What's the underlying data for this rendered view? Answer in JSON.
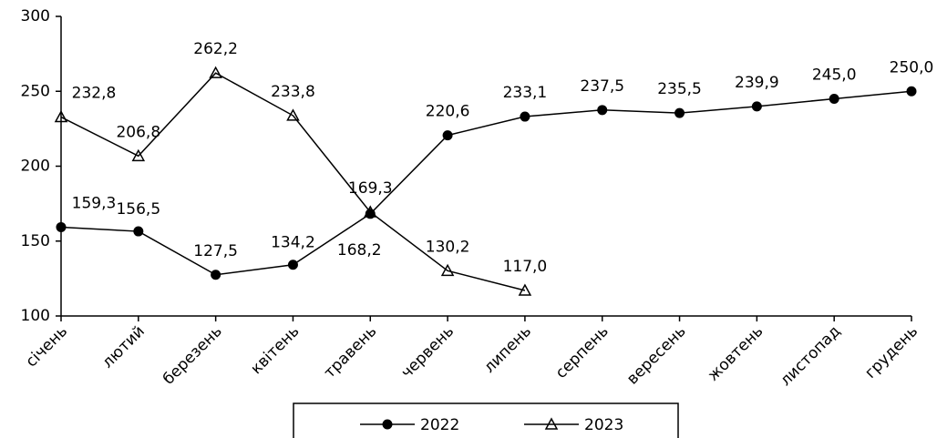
{
  "chart_data": {
    "type": "line",
    "categories": [
      "січень",
      "лютий",
      "березень",
      "квітень",
      "травень",
      "червень",
      "липень",
      "серпень",
      "вересень",
      "жовтень",
      "листопад",
      "грудень"
    ],
    "series": [
      {
        "name": "2022",
        "color": "#000000",
        "marker": "circle",
        "values": [
          159.3,
          156.5,
          127.5,
          134.2,
          168.2,
          220.6,
          233.1,
          237.5,
          235.5,
          239.9,
          245.0,
          250.0
        ],
        "value_labels": [
          "159,3",
          "156,5",
          "127,5",
          "134,2",
          "168,2",
          "220,6",
          "233,1",
          "237,5",
          "235,5",
          "239,9",
          "245,0",
          "250,0"
        ]
      },
      {
        "name": "2023",
        "color": "#000000",
        "marker": "triangle",
        "values": [
          232.8,
          206.8,
          262.2,
          233.8,
          169.3,
          130.2,
          117.0,
          null,
          null,
          null,
          null,
          null
        ],
        "value_labels": [
          "232,8",
          "206,8",
          "262,2",
          "233,8",
          "169,3",
          "130,2",
          "117,0",
          null,
          null,
          null,
          null,
          null
        ]
      }
    ],
    "ylim": [
      100,
      300
    ],
    "yticks": [
      100,
      150,
      200,
      250,
      300
    ],
    "grid": false,
    "legend": "bottom"
  }
}
